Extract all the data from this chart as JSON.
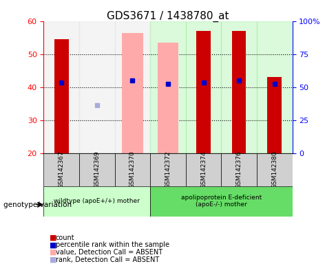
{
  "title": "GDS3671 / 1438780_at",
  "samples": [
    "GSM142367",
    "GSM142369",
    "GSM142370",
    "GSM142372",
    "GSM142374",
    "GSM142376",
    "GSM142380"
  ],
  "count_values": [
    54.5,
    null,
    null,
    null,
    57.0,
    57.0,
    43.0
  ],
  "count_absent_values": [
    null,
    null,
    56.5,
    53.5,
    null,
    null,
    null
  ],
  "rank_values": [
    41.5,
    null,
    42.0,
    41.0,
    41.5,
    42.0,
    41.0
  ],
  "rank_absent_values": [
    null,
    34.5,
    null,
    null,
    null,
    null,
    null
  ],
  "ylim": [
    20,
    60
  ],
  "y2lim": [
    0,
    100
  ],
  "yticks": [
    20,
    30,
    40,
    50,
    60
  ],
  "y2ticks": [
    0,
    25,
    50,
    75,
    100
  ],
  "y2ticklabels": [
    "0",
    "25",
    "50",
    "75",
    "100%"
  ],
  "group1_samples": [
    "GSM142367",
    "GSM142369",
    "GSM142370"
  ],
  "group2_samples": [
    "GSM142372",
    "GSM142374",
    "GSM142376",
    "GSM142380"
  ],
  "group1_label": "wildtype (apoE+/+) mother",
  "group2_label": "apolipoprotein E-deficient\n(apoE-/-) mother",
  "genotype_label": "genotype/variation",
  "bar_color_present": "#cc0000",
  "bar_color_absent": "#ffaaaa",
  "rank_color_present": "#0000cc",
  "rank_color_absent": "#aaaadd",
  "group1_bg": "#dddddd",
  "group2_bg": "#88ee88",
  "bar_width": 0.4,
  "legend_items": [
    {
      "color": "#cc0000",
      "label": "count",
      "marker": "s"
    },
    {
      "color": "#0000cc",
      "label": "percentile rank within the sample",
      "marker": "s"
    },
    {
      "color": "#ffaaaa",
      "label": "value, Detection Call = ABSENT",
      "marker": "s"
    },
    {
      "color": "#aaaadd",
      "label": "rank, Detection Call = ABSENT",
      "marker": "s"
    }
  ]
}
